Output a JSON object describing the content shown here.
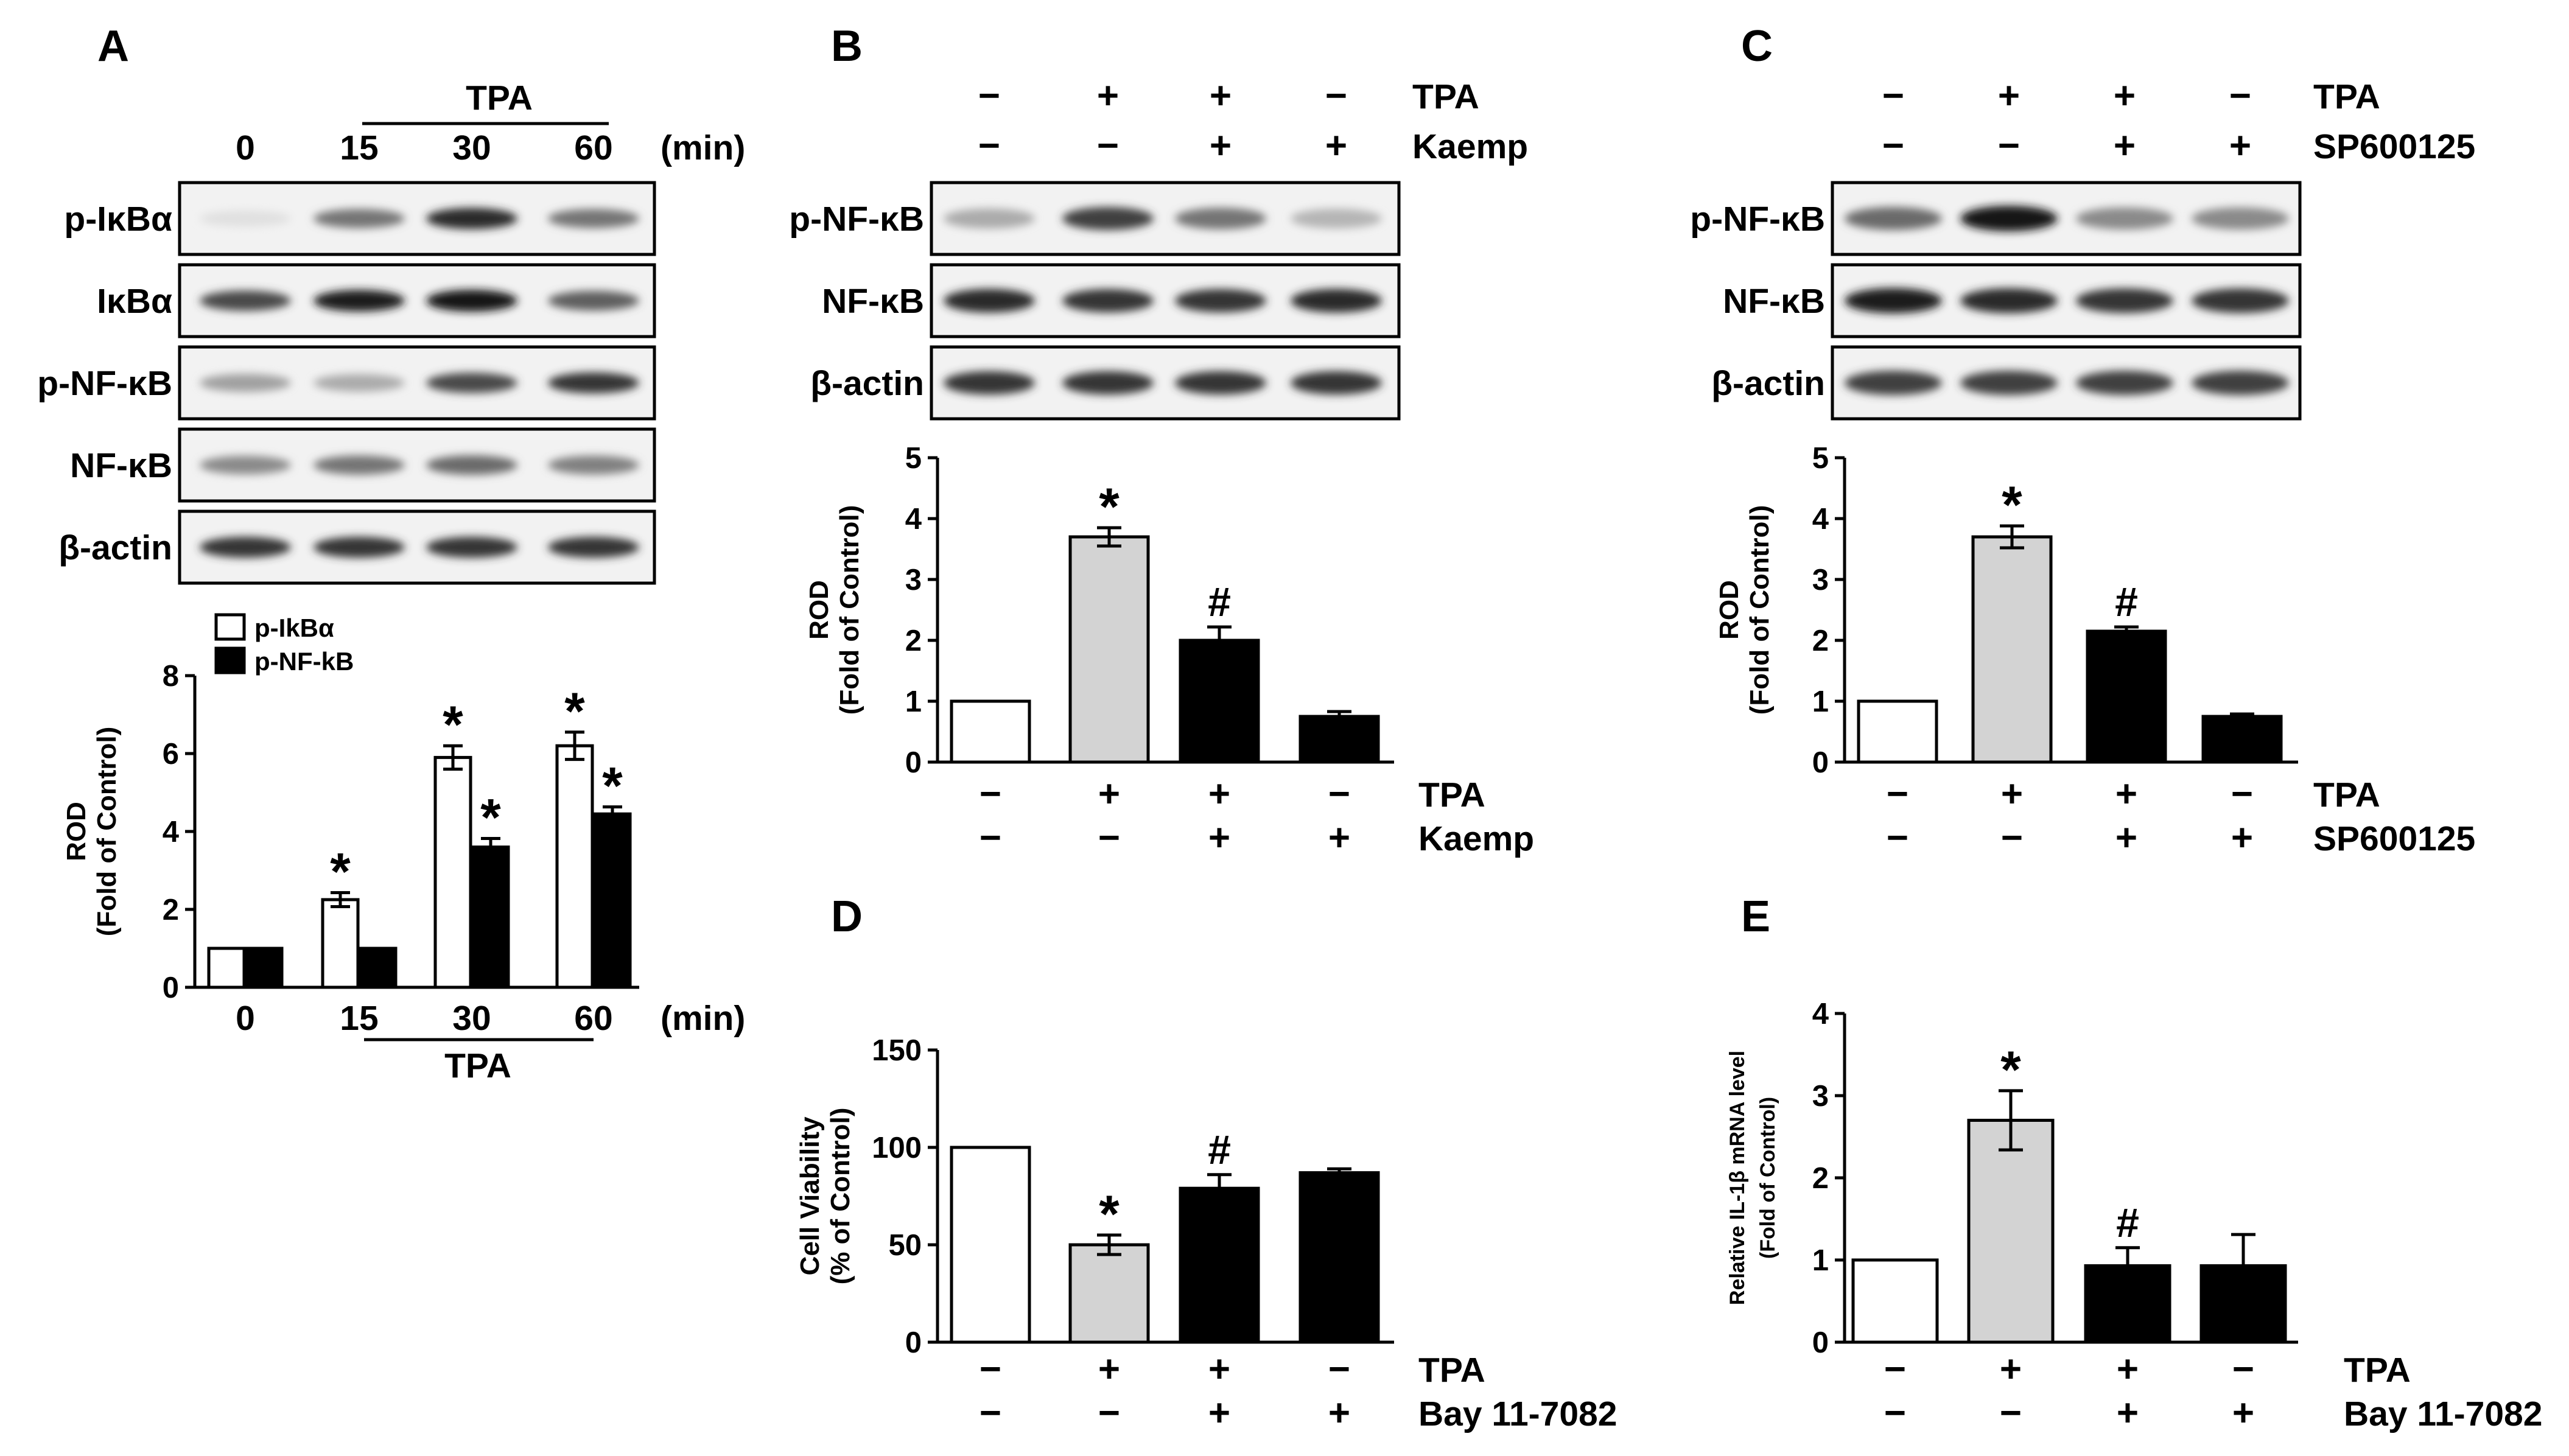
{
  "panels": {
    "A": {
      "letter": "A"
    },
    "B": {
      "letter": "B"
    },
    "C": {
      "letter": "C"
    },
    "D": {
      "letter": "D"
    },
    "E": {
      "letter": "E"
    }
  },
  "blotA": {
    "header_group": "TPA",
    "time_labels": [
      "0",
      "15",
      "30",
      "60"
    ],
    "time_unit": "(min)",
    "rows": [
      {
        "label": "p-IκBα",
        "intensities": [
          0.05,
          0.55,
          0.9,
          0.55
        ]
      },
      {
        "label": "IκBα",
        "intensities": [
          0.75,
          0.95,
          1.0,
          0.65
        ]
      },
      {
        "label": "p-NF-κB",
        "intensities": [
          0.35,
          0.3,
          0.75,
          0.85
        ]
      },
      {
        "label": "NF-κB",
        "intensities": [
          0.45,
          0.55,
          0.6,
          0.5
        ]
      },
      {
        "label": "β-actin",
        "intensities": [
          0.85,
          0.85,
          0.85,
          0.85
        ]
      }
    ]
  },
  "blotB": {
    "treatments": [
      {
        "label": "TPA",
        "signs": [
          "−",
          "+",
          "+",
          "−"
        ]
      },
      {
        "label": "Kaemp",
        "signs": [
          "−",
          "−",
          "+",
          "+"
        ]
      }
    ],
    "rows": [
      {
        "label": "p-NF-κB",
        "intensities": [
          0.3,
          0.8,
          0.55,
          0.25
        ]
      },
      {
        "label": "NF-κB",
        "intensities": [
          0.9,
          0.85,
          0.85,
          0.9
        ]
      },
      {
        "label": "β-actin",
        "intensities": [
          0.85,
          0.85,
          0.85,
          0.85
        ]
      }
    ]
  },
  "blotC": {
    "treatments": [
      {
        "label": "TPA",
        "signs": [
          "−",
          "+",
          "+",
          "−"
        ]
      },
      {
        "label": "SP600125",
        "signs": [
          "−",
          "−",
          "+",
          "+"
        ]
      }
    ],
    "rows": [
      {
        "label": "p-NF-κB",
        "intensities": [
          0.6,
          1.0,
          0.45,
          0.45
        ]
      },
      {
        "label": "NF-κB",
        "intensities": [
          0.95,
          0.9,
          0.85,
          0.85
        ]
      },
      {
        "label": "β-actin",
        "intensities": [
          0.8,
          0.8,
          0.8,
          0.8
        ]
      }
    ]
  },
  "colors": {
    "white": "#ffffff",
    "gray": "#d3d3d3",
    "black": "#000000"
  },
  "chart_data": [
    {
      "panel": "A",
      "type": "bar",
      "categories": [
        "0",
        "15",
        "30",
        "60"
      ],
      "x_unit": "(min)",
      "x_group_label": "TPA",
      "ylabel_line1": "ROD",
      "ylabel_line2": "(Fold of Control)",
      "ylim": [
        0,
        8
      ],
      "yticks": [
        0,
        2,
        4,
        6,
        8
      ],
      "series": [
        {
          "name": "p-IkBα",
          "color": "white",
          "values": [
            1.0,
            2.25,
            5.9,
            6.2
          ],
          "errors": [
            0,
            0.18,
            0.3,
            0.35
          ]
        },
        {
          "name": "p-NF-kB",
          "color": "black",
          "values": [
            1.0,
            1.0,
            3.6,
            4.45
          ],
          "errors": [
            0,
            0,
            0.22,
            0.18
          ]
        }
      ],
      "annotations": [
        {
          "series": 0,
          "index": 1,
          "text": "*"
        },
        {
          "series": 0,
          "index": 2,
          "text": "*"
        },
        {
          "series": 1,
          "index": 2,
          "text": "*"
        },
        {
          "series": 0,
          "index": 3,
          "text": "*"
        },
        {
          "series": 1,
          "index": 3,
          "text": "*"
        }
      ],
      "legend": "top-left"
    },
    {
      "panel": "B",
      "type": "bar",
      "ylabel_line1": "ROD",
      "ylabel_line2": "(Fold of Control)",
      "ylim": [
        0,
        5
      ],
      "yticks": [
        0,
        1,
        2,
        3,
        4,
        5
      ],
      "values": [
        1.0,
        3.7,
        2.0,
        0.75
      ],
      "errors": [
        0,
        0.15,
        0.22,
        0.08
      ],
      "colors": [
        "white",
        "gray",
        "black",
        "black"
      ],
      "annotations": [
        "",
        "*",
        "#",
        ""
      ],
      "treatments": [
        {
          "label": "TPA",
          "signs": [
            "−",
            "+",
            "+",
            "−"
          ]
        },
        {
          "label": "Kaemp",
          "signs": [
            "−",
            "−",
            "+",
            "+"
          ]
        }
      ]
    },
    {
      "panel": "C",
      "type": "bar",
      "ylabel_line1": "ROD",
      "ylabel_line2": "(Fold of Control)",
      "ylim": [
        0,
        5
      ],
      "yticks": [
        0,
        1,
        2,
        3,
        4,
        5
      ],
      "values": [
        1.0,
        3.7,
        2.15,
        0.75
      ],
      "errors": [
        0,
        0.18,
        0.07,
        0.04
      ],
      "colors": [
        "white",
        "gray",
        "black",
        "black"
      ],
      "annotations": [
        "",
        "*",
        "#",
        ""
      ],
      "treatments": [
        {
          "label": "TPA",
          "signs": [
            "−",
            "+",
            "+",
            "−"
          ]
        },
        {
          "label": "SP600125",
          "signs": [
            "−",
            "−",
            "+",
            "+"
          ]
        }
      ]
    },
    {
      "panel": "D",
      "type": "bar",
      "ylabel_line1": "Cell Viability",
      "ylabel_line2": "(% of Control)",
      "ylim": [
        0,
        150
      ],
      "yticks": [
        0,
        50,
        100,
        150
      ],
      "values": [
        100,
        50,
        79,
        87
      ],
      "errors": [
        0,
        5,
        7,
        2
      ],
      "colors": [
        "white",
        "gray",
        "black",
        "black"
      ],
      "annotations": [
        "",
        "*",
        "#",
        ""
      ],
      "treatments": [
        {
          "label": "TPA",
          "signs": [
            "−",
            "+",
            "+",
            "−"
          ]
        },
        {
          "label": "Bay 11-7082",
          "signs": [
            "−",
            "−",
            "+",
            "+"
          ]
        }
      ]
    },
    {
      "panel": "E",
      "type": "bar",
      "ylabel_line1": "Relative IL-1β mRNA level",
      "ylabel_line2": "(Fold of Control)",
      "ylim": [
        0,
        4
      ],
      "yticks": [
        0,
        1,
        2,
        3,
        4
      ],
      "values": [
        1.0,
        2.7,
        0.93,
        0.93
      ],
      "errors": [
        0,
        0.36,
        0.22,
        0.38
      ],
      "colors": [
        "white",
        "gray",
        "black",
        "black"
      ],
      "annotations": [
        "",
        "*",
        "#",
        ""
      ],
      "treatments": [
        {
          "label": "TPA",
          "signs": [
            "−",
            "+",
            "+",
            "−"
          ]
        },
        {
          "label": "Bay 11-7082",
          "signs": [
            "−",
            "−",
            "+",
            "+"
          ]
        }
      ]
    }
  ]
}
